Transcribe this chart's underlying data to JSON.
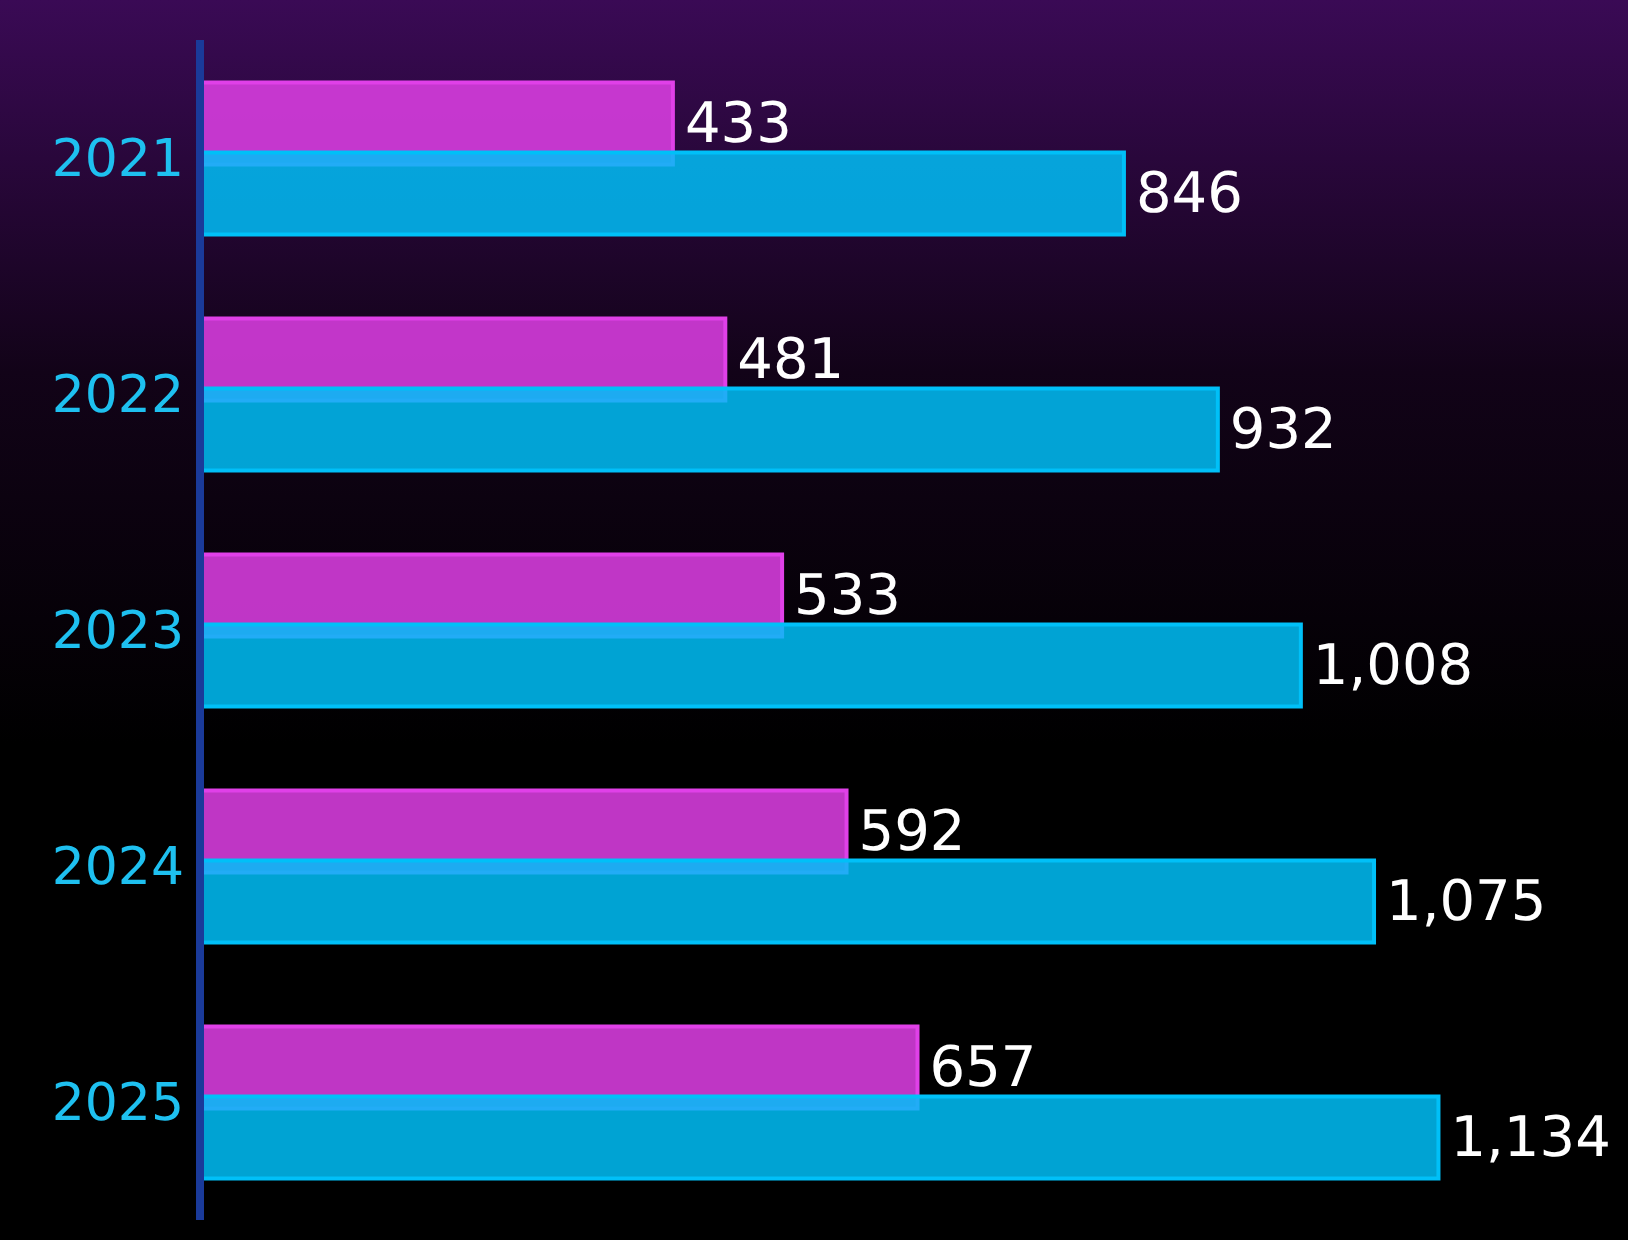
{
  "chart_data": {
    "type": "bar",
    "orientation": "horizontal",
    "categories": [
      "2021",
      "2022",
      "2023",
      "2024",
      "2025"
    ],
    "series": [
      {
        "color": "#e040e8",
        "values": [
          433,
          481,
          533,
          592,
          657
        ],
        "value_labels": [
          "433",
          "481",
          "533",
          "592",
          "657"
        ]
      },
      {
        "color": "#00c0f8",
        "values": [
          846,
          932,
          1008,
          1075,
          1134
        ],
        "value_labels": [
          "846",
          "932",
          "1,008",
          "1,075",
          "1,134"
        ]
      }
    ],
    "grid": false,
    "legend": false
  }
}
